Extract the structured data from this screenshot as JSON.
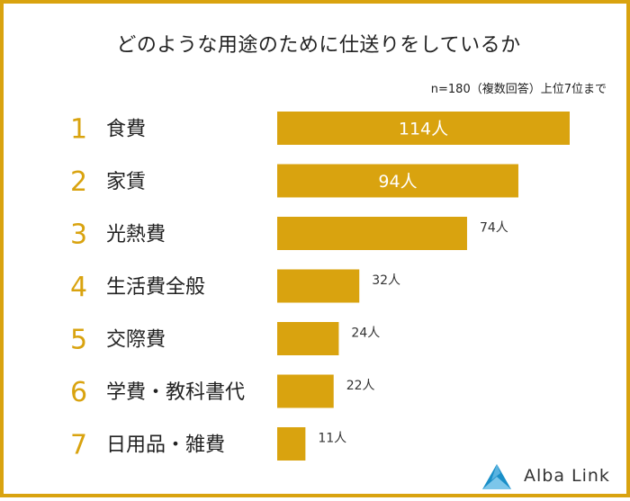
{
  "chart_data": {
    "type": "bar",
    "orientation": "horizontal",
    "title": "どのような用途のために仕送りをしているか",
    "note": "n=180（複数回答）上位7位まで",
    "unit": "人",
    "ranks": [
      "1",
      "2",
      "3",
      "4",
      "5",
      "6",
      "7"
    ],
    "categories": [
      "食費",
      "家賃",
      "光熱費",
      "生活費全般",
      "交際費",
      "学費・教科書代",
      "日用品・雑費"
    ],
    "values": [
      114,
      94,
      74,
      32,
      24,
      22,
      11
    ],
    "value_labels": [
      "114人",
      "94人",
      "74人",
      "32人",
      "24人",
      "22人",
      "11人"
    ],
    "xlim": [
      0,
      114
    ],
    "bar_color": "#d9a30f"
  },
  "brand": {
    "name": "Alba Link",
    "color": "#1a8fc8"
  },
  "frame_color": "#d9a30f"
}
